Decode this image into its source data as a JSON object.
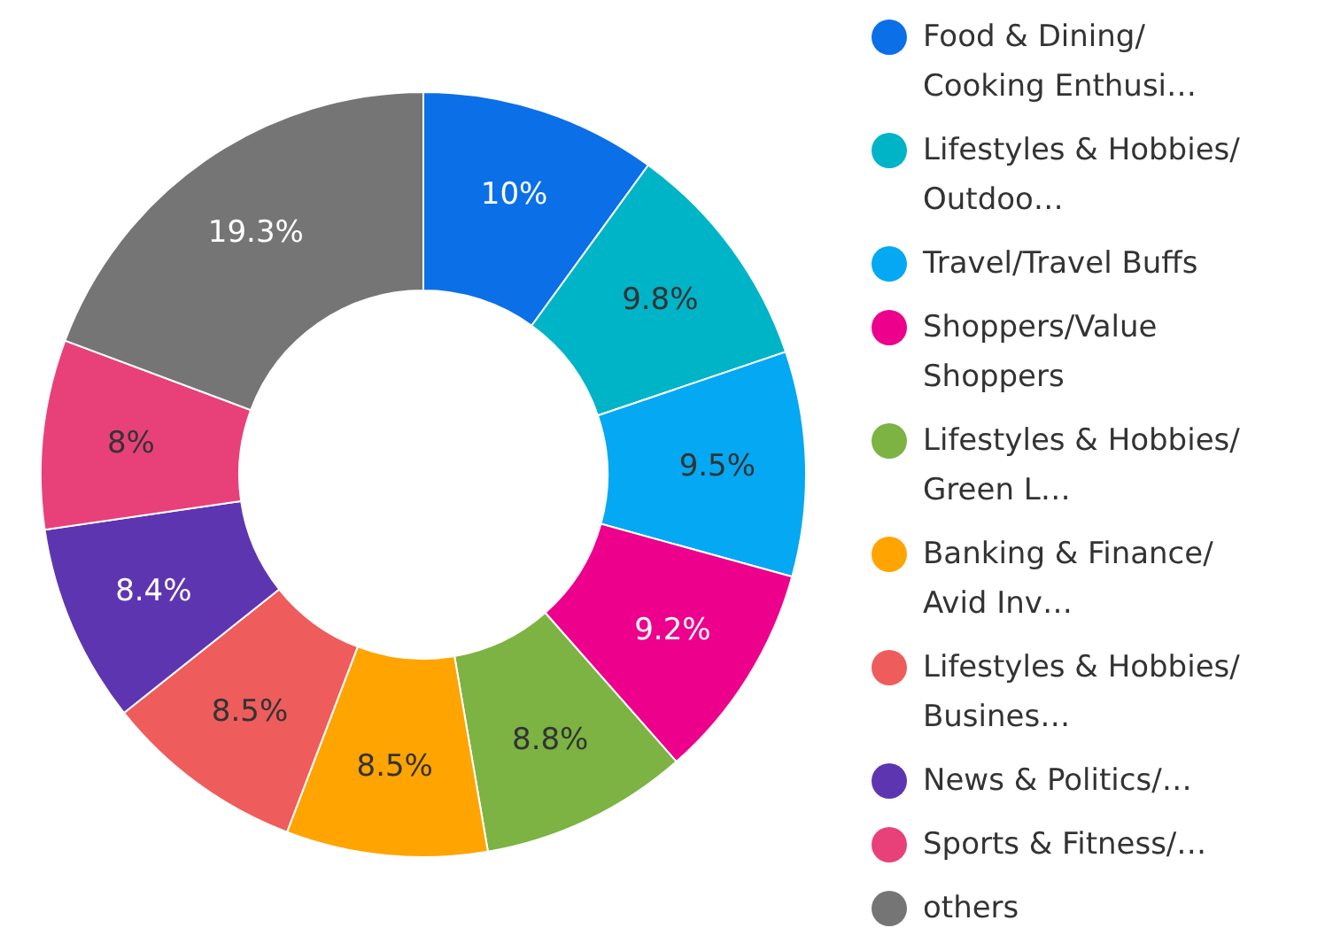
{
  "chart_data": {
    "type": "donut",
    "legend": "right",
    "value_labels": [
      "10%",
      "9.8%",
      "9.5%",
      "9.2%",
      "8.8%",
      "8.5%",
      "8.5%",
      "8.4%",
      "8%",
      "19.3%"
    ],
    "categories": [
      "Food & Dining/Cooking Enthusi…",
      "Lifestyles & Hobbies/Outdoo…",
      "Travel/Travel Buffs",
      "Shoppers/Value Shoppers",
      "Lifestyles & Hobbies/Green L…",
      "Banking & Finance/Avid Inv…",
      "Lifestyles & Hobbies/Busines…",
      "News & Politics/…",
      "Sports & Fitness/…",
      "others"
    ],
    "values": [
      10,
      9.8,
      9.5,
      9.2,
      8.8,
      8.5,
      8.5,
      8.4,
      8,
      19.3
    ],
    "colors": [
      "#0b6fe8",
      "#00b4c8",
      "#05a8f2",
      "#ec008c",
      "#7cb342",
      "#ffa400",
      "#ef5c5c",
      "#5e35b1",
      "#e8417a",
      "#757575"
    ]
  }
}
